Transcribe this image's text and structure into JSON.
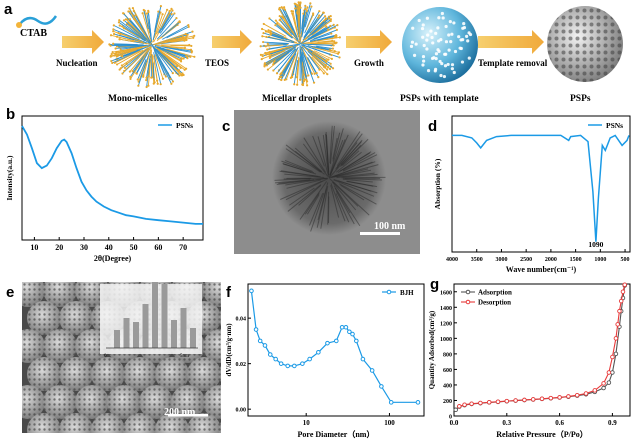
{
  "panel_a": {
    "label": "a",
    "cta_label": "CTAB",
    "steps": [
      "Nucleation",
      "TEOS",
      "Growth",
      "Template removal"
    ],
    "captions": [
      "Mono-micelles",
      "Micellar droplets",
      "PSPs with template",
      "PSPs"
    ]
  },
  "panel_b": {
    "label": "b",
    "chart_data": {
      "type": "line",
      "xlabel": "2θ(Degree)",
      "ylabel": "Intensity(a.u.)",
      "legend": "PSNs",
      "legend_position": "top-right",
      "xlim": [
        5,
        78
      ],
      "xticks": [
        10,
        20,
        30,
        40,
        50,
        60,
        70
      ],
      "x": [
        5,
        7,
        9,
        11,
        13,
        15,
        17,
        19,
        21,
        22,
        23,
        25,
        27,
        29,
        31,
        33,
        35,
        38,
        41,
        44,
        47,
        50,
        55,
        60,
        65,
        70,
        75,
        78
      ],
      "y": [
        0.92,
        0.85,
        0.74,
        0.62,
        0.58,
        0.6,
        0.66,
        0.74,
        0.8,
        0.81,
        0.79,
        0.7,
        0.58,
        0.47,
        0.4,
        0.35,
        0.31,
        0.27,
        0.24,
        0.22,
        0.2,
        0.19,
        0.17,
        0.16,
        0.15,
        0.14,
        0.13,
        0.13
      ]
    }
  },
  "panel_c": {
    "label": "c",
    "scale_bar": "100 nm"
  },
  "panel_d": {
    "label": "d",
    "chart_data": {
      "type": "line",
      "xlabel": "Wave number(cm⁻¹)",
      "ylabel": "Absorption (%)",
      "legend": "PSNs",
      "legend_position": "top-right",
      "xlim": [
        4000,
        400
      ],
      "xticks": [
        4000,
        3500,
        3000,
        2500,
        2000,
        1500,
        1000,
        500
      ],
      "annotation": "1090",
      "x": [
        4000,
        3800,
        3600,
        3500,
        3420,
        3300,
        3100,
        2800,
        2500,
        2200,
        2000,
        1800,
        1640,
        1600,
        1400,
        1250,
        1150,
        1090,
        1040,
        960,
        900,
        800,
        700,
        560,
        460,
        420
      ],
      "y": [
        0.9,
        0.9,
        0.88,
        0.84,
        0.8,
        0.86,
        0.89,
        0.9,
        0.9,
        0.9,
        0.9,
        0.9,
        0.86,
        0.89,
        0.9,
        0.85,
        0.45,
        0.05,
        0.4,
        0.82,
        0.78,
        0.88,
        0.9,
        0.82,
        0.86,
        0.9
      ]
    }
  },
  "panel_e": {
    "label": "e",
    "scale_bar": "200 nm",
    "inset_ticks": [
      "0",
      "5nm"
    ]
  },
  "panel_f": {
    "label": "f",
    "chart_data": {
      "type": "line",
      "xlabel": "Pore Diameter（nm）",
      "ylabel": "dV/dD(cm³/g·nm)",
      "legend": "BJH",
      "legend_position": "top-right",
      "xscale": "log",
      "xticks": [
        10,
        100
      ],
      "yticks": [
        0.0,
        0.02,
        0.04
      ],
      "ylim": [
        -0.003,
        0.055
      ],
      "x": [
        2.2,
        2.5,
        2.8,
        3.2,
        3.7,
        4.3,
        5.0,
        6.0,
        7.2,
        9.0,
        11,
        14,
        18,
        23,
        27,
        30,
        33,
        36,
        40,
        48,
        62,
        80,
        105,
        220
      ],
      "y": [
        0.052,
        0.035,
        0.03,
        0.028,
        0.024,
        0.022,
        0.02,
        0.019,
        0.019,
        0.02,
        0.022,
        0.025,
        0.029,
        0.03,
        0.036,
        0.036,
        0.034,
        0.033,
        0.03,
        0.022,
        0.017,
        0.01,
        0.003,
        0.003
      ]
    }
  },
  "panel_g": {
    "label": "g",
    "chart_data": {
      "type": "line",
      "xlabel": "Relative Pressure（P/Po）",
      "ylabel": "Quantity Adsorbed(cm³/g)",
      "legend_position": "top-left",
      "xlim": [
        0,
        1
      ],
      "ylim": [
        0,
        1700
      ],
      "xticks": [
        0.0,
        0.3,
        0.6,
        0.9
      ],
      "yticks": [
        0,
        200,
        400,
        600,
        800,
        1000,
        1200,
        1400,
        1600
      ],
      "series": [
        {
          "name": "Adsorption",
          "color": "#555555",
          "x": [
            0.01,
            0.03,
            0.06,
            0.1,
            0.15,
            0.2,
            0.25,
            0.3,
            0.35,
            0.4,
            0.45,
            0.5,
            0.55,
            0.6,
            0.65,
            0.7,
            0.75,
            0.8,
            0.85,
            0.88,
            0.9,
            0.92,
            0.94,
            0.95,
            0.96,
            0.97
          ],
          "y": [
            80,
            120,
            140,
            155,
            165,
            175,
            182,
            190,
            198,
            205,
            212,
            220,
            228,
            238,
            248,
            262,
            280,
            310,
            360,
            430,
            560,
            800,
            1150,
            1350,
            1520,
            1680
          ]
        },
        {
          "name": "Desorption",
          "color": "#e83a3a",
          "x": [
            0.97,
            0.96,
            0.95,
            0.94,
            0.93,
            0.92,
            0.9,
            0.88,
            0.85,
            0.8,
            0.75,
            0.7,
            0.65,
            0.6,
            0.55,
            0.5,
            0.45,
            0.4,
            0.35,
            0.3,
            0.25,
            0.2,
            0.15,
            0.1,
            0.06,
            0.03
          ],
          "y": [
            1690,
            1600,
            1480,
            1350,
            1180,
            1000,
            760,
            560,
            420,
            330,
            290,
            268,
            252,
            240,
            230,
            222,
            214,
            207,
            200,
            192,
            184,
            177,
            168,
            158,
            145,
            125
          ]
        }
      ]
    }
  }
}
